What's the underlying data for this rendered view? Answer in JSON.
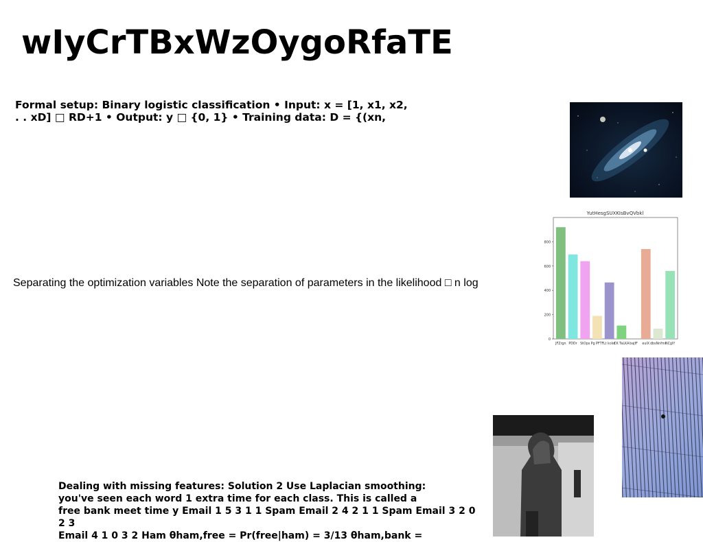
{
  "title": "wIyCrTBxWzOygoRfaTE",
  "block1_lines": [
    "Formal setup: Binary logistic classification • Input: x = [1, x1, x2,",
    ". . xD] □ RD+1 • Output: y □ {0, 1} • Training data: D = {(xn,"
  ],
  "block2": "Separating the optimization variables Note the separation of parameters in the likelihood □ n log",
  "block3_lines": [
    "Dealing with missing features: Solution 2 Use Laplacian smoothing:",
    "you've seen each word 1 extra time for each class. This is called a",
    "free bank meet time y Email 1 5 3 1 1 Spam Email 2 4 2 1 1 Spam Email 3 2 0 2 3",
    "Email 4 1 0 3 2 Ham θham,free = Pr(free|ham) = 3/13 θham,bank ="
  ],
  "chart_data": {
    "type": "bar",
    "title": "YutHesgSUXKIsBvQVbkl",
    "categories": [
      "JFZrgn",
      "PDDr",
      "StOps",
      "Pg PFTF",
      "Lt kckd",
      "CK TaLKA",
      "bajfF",
      "euIX",
      "dbsNnfmi",
      "NCgIY"
    ],
    "values": [
      920,
      695,
      640,
      190,
      465,
      110,
      0,
      740,
      85,
      560
    ],
    "colors": [
      "#7fbf7f",
      "#7fe6e0",
      "#f0a3f0",
      "#f3e2b3",
      "#9b93cc",
      "#7fd27f",
      "#ffffff",
      "#e8ab96",
      "#dde8d2",
      "#98e2b8"
    ],
    "yticks": [
      0,
      200,
      400,
      600,
      800
    ],
    "ylim": [
      0,
      1000
    ],
    "xlabel": "",
    "ylabel": ""
  },
  "images": {
    "galaxy": "galaxy-photo",
    "stairs": "purple-stairs-photo",
    "person": "person-in-elevator-photo"
  }
}
